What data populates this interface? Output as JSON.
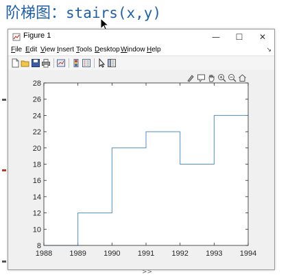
{
  "heading": {
    "zh": "阶梯图：",
    "code": "stairs(x,y)"
  },
  "window": {
    "title": "Figure 1",
    "controls": {
      "minimize": "—",
      "maximize": "☐",
      "close": "✕"
    }
  },
  "menu": {
    "items": [
      {
        "key": "F",
        "rest": "ile"
      },
      {
        "key": "E",
        "rest": "dit"
      },
      {
        "key": "V",
        "rest": "iew"
      },
      {
        "key": "I",
        "rest": "nsert"
      },
      {
        "key": "T",
        "rest": "ools"
      },
      {
        "key": "D",
        "rest": "esktop"
      },
      {
        "key": "W",
        "rest": "indow"
      },
      {
        "key": "H",
        "rest": "elp"
      }
    ],
    "dock_arrow": "↘"
  },
  "toolbar_icons": [
    "new-figure-icon",
    "open-file-icon",
    "save-icon",
    "print-icon",
    "link-plot-icon",
    "insert-colorbar-icon",
    "insert-legend-icon",
    "pointer-icon",
    "property-inspector-icon"
  ],
  "axes_toolbar_icons": [
    "brush-icon",
    "data-tips-icon",
    "zoom-in-icon",
    "zoom-out-icon",
    "pan-icon",
    "restore-view-icon"
  ],
  "bottom_chevron": ">>",
  "colors": {
    "line": "#4d8ec4",
    "heading": "#1d5fa8",
    "axes_bg": "#ffffff",
    "figure_bg": "#f0f0f0"
  },
  "chart_data": {
    "type": "line",
    "style": "stairs",
    "x": [
      1988,
      1989,
      1990,
      1991,
      1992,
      1993,
      1994
    ],
    "y": [
      8,
      12,
      20,
      22,
      18,
      24,
      24
    ],
    "xlim": [
      1988,
      1994
    ],
    "ylim": [
      8,
      28
    ],
    "xticks": [
      "1988",
      "1989",
      "1990",
      "1991",
      "1992",
      "1993",
      "1994"
    ],
    "yticks": [
      "8",
      "10",
      "12",
      "14",
      "16",
      "18",
      "20",
      "22",
      "24",
      "26",
      "28"
    ],
    "grid": false,
    "title": "",
    "xlabel": "",
    "ylabel": ""
  }
}
